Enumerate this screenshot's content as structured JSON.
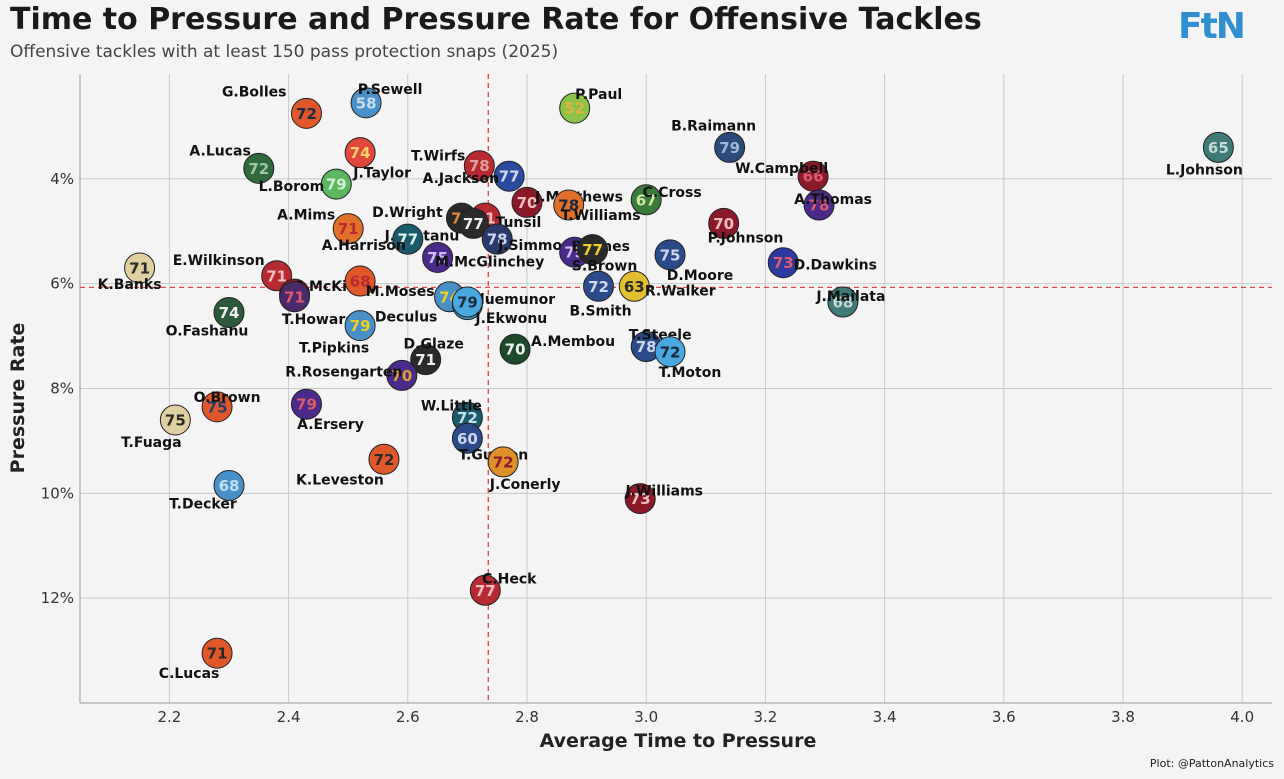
{
  "title": "Time to Pressure and Pressure Rate for Offensive Tackles",
  "subtitle": "Offensive tackles with at least 150 pass protection snaps (2025)",
  "logo": "FtN",
  "credit": "Plot: @PattonAnalytics",
  "chart_data": {
    "type": "scatter",
    "xlabel": "Average Time to Pressure",
    "ylabel": "Pressure Rate",
    "xlim": [
      2.05,
      4.05
    ],
    "ylim": [
      2.0,
      14.0
    ],
    "y_reversed": true,
    "x_ticks": [
      "2.2",
      "2.4",
      "2.6",
      "2.8",
      "3.0",
      "3.2",
      "3.4",
      "3.6",
      "3.8",
      "4.0"
    ],
    "y_ticks": [
      "4%",
      "6%",
      "8%",
      "10%",
      "12%"
    ],
    "reference_lines": {
      "x_mean": 2.735,
      "y_mean": 6.07
    },
    "grid": true,
    "points": [
      {
        "name": "P.Sewell",
        "x": 2.53,
        "y": 2.55,
        "grade": "58",
        "fill": "#4a90c8",
        "text": "#c9dff0"
      },
      {
        "name": "G.Bolles",
        "x": 2.43,
        "y": 2.75,
        "grade": "72",
        "fill": "#e0572a",
        "text": "#1e2a44"
      },
      {
        "name": "P.Paul",
        "x": 2.88,
        "y": 2.65,
        "grade": "52",
        "fill": "#8bc34a",
        "text": "#e8b040"
      },
      {
        "name": "B.Raimann",
        "x": 3.14,
        "y": 3.4,
        "grade": "79",
        "fill": "#2d4b7a",
        "text": "#9fb8d8"
      },
      {
        "name": "L.Johnson",
        "x": 3.96,
        "y": 3.4,
        "grade": "65",
        "fill": "#3d7a78",
        "text": "#c8d8d8"
      },
      {
        "name": "A.Lucas",
        "x": 2.35,
        "y": 3.8,
        "grade": "72",
        "fill": "#2f6a3a",
        "text": "#a0c8a8"
      },
      {
        "name": "J.Taylor",
        "x": 2.52,
        "y": 3.5,
        "grade": "74",
        "fill": "#e2483a",
        "text": "#f5d070"
      },
      {
        "name": "L.Borom",
        "x": 2.48,
        "y": 4.1,
        "grade": "79",
        "fill": "#5cb860",
        "text": "#d8f0d8"
      },
      {
        "name": "T.Wirfs",
        "x": 2.72,
        "y": 3.75,
        "grade": "78",
        "fill": "#b82a32",
        "text": "#e0a0a0"
      },
      {
        "name": "W.Campbell",
        "x": 3.28,
        "y": 3.95,
        "grade": "66",
        "fill": "#8a1a2a",
        "text": "#e05a6a"
      },
      {
        "name": "A.Jackson",
        "x": 2.77,
        "y": 3.95,
        "grade": "77",
        "fill": "#2a4aa0",
        "text": "#d0d8f0"
      },
      {
        "name": "J.Matthews",
        "x": 2.8,
        "y": 4.45,
        "grade": "70",
        "fill": "#8a1a2a",
        "text": "#f0c0c0"
      },
      {
        "name": "T.Williams",
        "x": 2.87,
        "y": 4.5,
        "grade": "78",
        "fill": "#e0702a",
        "text": "#1a2a3a"
      },
      {
        "name": "C.Cross",
        "x": 3.0,
        "y": 4.4,
        "grade": "67",
        "fill": "#3a7a3a",
        "text": "#d0e8a0"
      },
      {
        "name": "L.Tunsil",
        "x": 2.73,
        "y": 4.75,
        "grade": "71",
        "fill": "#b82a32",
        "text": "#f0c0c0"
      },
      {
        "name": "A.Thomas",
        "x": 3.29,
        "y": 4.5,
        "grade": "78",
        "fill": "#4a2a8a",
        "text": "#e05a6a"
      },
      {
        "name": "D.Wright",
        "x": 2.69,
        "y": 4.75,
        "grade": "74",
        "fill": "#2a2a2a",
        "text": "#e08a3a"
      },
      {
        "name": "J.Fautanu",
        "x": 2.71,
        "y": 4.85,
        "grade": "77",
        "fill": "#2a2a2a",
        "text": "#f0f0f0"
      },
      {
        "name": "A.Mims",
        "x": 2.5,
        "y": 4.95,
        "grade": "71",
        "fill": "#e0702a",
        "text": "#b82a32"
      },
      {
        "name": "P.Johnson",
        "x": 3.13,
        "y": 4.85,
        "grade": "70",
        "fill": "#8a1a2a",
        "text": "#f0c0c0"
      },
      {
        "name": "A.Harrison",
        "x": 2.6,
        "y": 5.15,
        "grade": "77",
        "fill": "#1a5a6a",
        "text": "#e0f0f0"
      },
      {
        "name": "J.Simmons",
        "x": 2.75,
        "y": 5.15,
        "grade": "78",
        "fill": "#2a3a6a",
        "text": "#d0d8f0"
      },
      {
        "name": "B.Jones",
        "x": 2.88,
        "y": 5.4,
        "grade": "75",
        "fill": "#4a2a8a",
        "text": "#d0c0f0"
      },
      {
        "name": "S.Brown",
        "x": 2.91,
        "y": 5.35,
        "grade": "77",
        "fill": "#2a2a2a",
        "text": "#f0d020"
      },
      {
        "name": "D.Moore",
        "x": 3.04,
        "y": 5.45,
        "grade": "75",
        "fill": "#2a4a8a",
        "text": "#d0d8f0"
      },
      {
        "name": "D.Dawkins",
        "x": 3.23,
        "y": 5.6,
        "grade": "73",
        "fill": "#2a3aa0",
        "text": "#e05a6a"
      },
      {
        "name": "K.Banks",
        "x": 2.15,
        "y": 5.7,
        "grade": "71",
        "fill": "#e0d0a0",
        "text": "#2a2a2a"
      },
      {
        "name": "E.Wilkinson",
        "x": 2.38,
        "y": 5.85,
        "grade": "71",
        "fill": "#b82a32",
        "text": "#f0c0c0"
      },
      {
        "name": "C.McKivitz",
        "x": 2.41,
        "y": 6.2,
        "grade": "71",
        "fill": "#8a1a2a",
        "text": "#f0c0c0"
      },
      {
        "name": "M.McGlinchey",
        "x": 2.65,
        "y": 5.5,
        "grade": "75",
        "fill": "#4a2a8a",
        "text": "#d0c0f0"
      },
      {
        "name": "M.Moses",
        "x": 2.52,
        "y": 5.95,
        "grade": "68",
        "fill": "#e0572a",
        "text": "#b82a32"
      },
      {
        "name": "J.Eluemunor",
        "x": 2.67,
        "y": 6.25,
        "grade": "74",
        "fill": "#4a90c8",
        "text": "#f0d020"
      },
      {
        "name": "B.Smith",
        "x": 2.92,
        "y": 6.05,
        "grade": "72",
        "fill": "#2a4a8a",
        "text": "#d0d8f0"
      },
      {
        "name": "R.Walker",
        "x": 2.98,
        "y": 6.05,
        "grade": "63",
        "fill": "#e0c030",
        "text": "#2a2a2a"
      },
      {
        "name": "J.Mailata",
        "x": 3.33,
        "y": 6.35,
        "grade": "68",
        "fill": "#3d7a78",
        "text": "#c8d8d8"
      },
      {
        "name": "A.Deculus",
        "x": 2.7,
        "y": 6.4,
        "grade": "79",
        "fill": "#4a90c8",
        "text": "#d0d8f0"
      },
      {
        "name": "J.Ekwonu",
        "x": 2.7,
        "y": 6.35,
        "grade": "79",
        "fill": "#4aa8e0",
        "text": "#1a2a3a"
      },
      {
        "name": "O.Fashanu",
        "x": 2.3,
        "y": 6.55,
        "grade": "74",
        "fill": "#2a5a3a",
        "text": "#f0f0f0"
      },
      {
        "name": "T.Howard",
        "x": 2.41,
        "y": 6.25,
        "grade": "71",
        "fill": "#4a2a6a",
        "text": "#e05a6a"
      },
      {
        "name": "T.Pipkins",
        "x": 2.52,
        "y": 6.8,
        "grade": "79",
        "fill": "#4a90c8",
        "text": "#f0d020"
      },
      {
        "name": "T.Steele",
        "x": 3.0,
        "y": 7.2,
        "grade": "78",
        "fill": "#2a4a8a",
        "text": "#d0d8f0"
      },
      {
        "name": "T.Moton",
        "x": 3.04,
        "y": 7.3,
        "grade": "72",
        "fill": "#4aa8e0",
        "text": "#1a2a3a"
      },
      {
        "name": "A.Membou",
        "x": 2.78,
        "y": 7.25,
        "grade": "70",
        "fill": "#1a4a2a",
        "text": "#f0f0f0"
      },
      {
        "name": "D.Glaze",
        "x": 2.63,
        "y": 7.45,
        "grade": "71",
        "fill": "#2a2a2a",
        "text": "#f0f0f0"
      },
      {
        "name": "R.Rosengarten",
        "x": 2.59,
        "y": 7.75,
        "grade": "70",
        "fill": "#4a2a8a",
        "text": "#e0a030"
      },
      {
        "name": "O.Brown",
        "x": 2.28,
        "y": 8.35,
        "grade": "75",
        "fill": "#e0572a",
        "text": "#2a3a6a"
      },
      {
        "name": "A.Ersery",
        "x": 2.43,
        "y": 8.3,
        "grade": "79",
        "fill": "#4a2a8a",
        "text": "#e05a6a"
      },
      {
        "name": "T.Fuaga",
        "x": 2.21,
        "y": 8.6,
        "grade": "75",
        "fill": "#e0d0a0",
        "text": "#2a2a2a"
      },
      {
        "name": "W.Little",
        "x": 2.7,
        "y": 8.55,
        "grade": "72",
        "fill": "#1a5a6a",
        "text": "#c0e0f0"
      },
      {
        "name": "T.Guyton",
        "x": 2.7,
        "y": 8.95,
        "grade": "60",
        "fill": "#2a4a8a",
        "text": "#d0d8f0"
      },
      {
        "name": "K.Leveston",
        "x": 2.56,
        "y": 9.35,
        "grade": "72",
        "fill": "#e0572a",
        "text": "#2a2a2a"
      },
      {
        "name": "J.Conerly",
        "x": 2.76,
        "y": 9.4,
        "grade": "72",
        "fill": "#e0902a",
        "text": "#8a1a2a"
      },
      {
        "name": "T.Decker",
        "x": 2.3,
        "y": 9.85,
        "grade": "68",
        "fill": "#4a90c8",
        "text": "#c0e0f0"
      },
      {
        "name": "J.Williams",
        "x": 2.99,
        "y": 10.1,
        "grade": "73",
        "fill": "#8a1a2a",
        "text": "#f0c0c0"
      },
      {
        "name": "C.Heck",
        "x": 2.73,
        "y": 11.85,
        "grade": "77",
        "fill": "#b82a32",
        "text": "#f0c0c0"
      },
      {
        "name": "C.Lucas",
        "x": 2.28,
        "y": 13.05,
        "grade": "71",
        "fill": "#e0572a",
        "text": "#2a2a2a"
      }
    ]
  }
}
